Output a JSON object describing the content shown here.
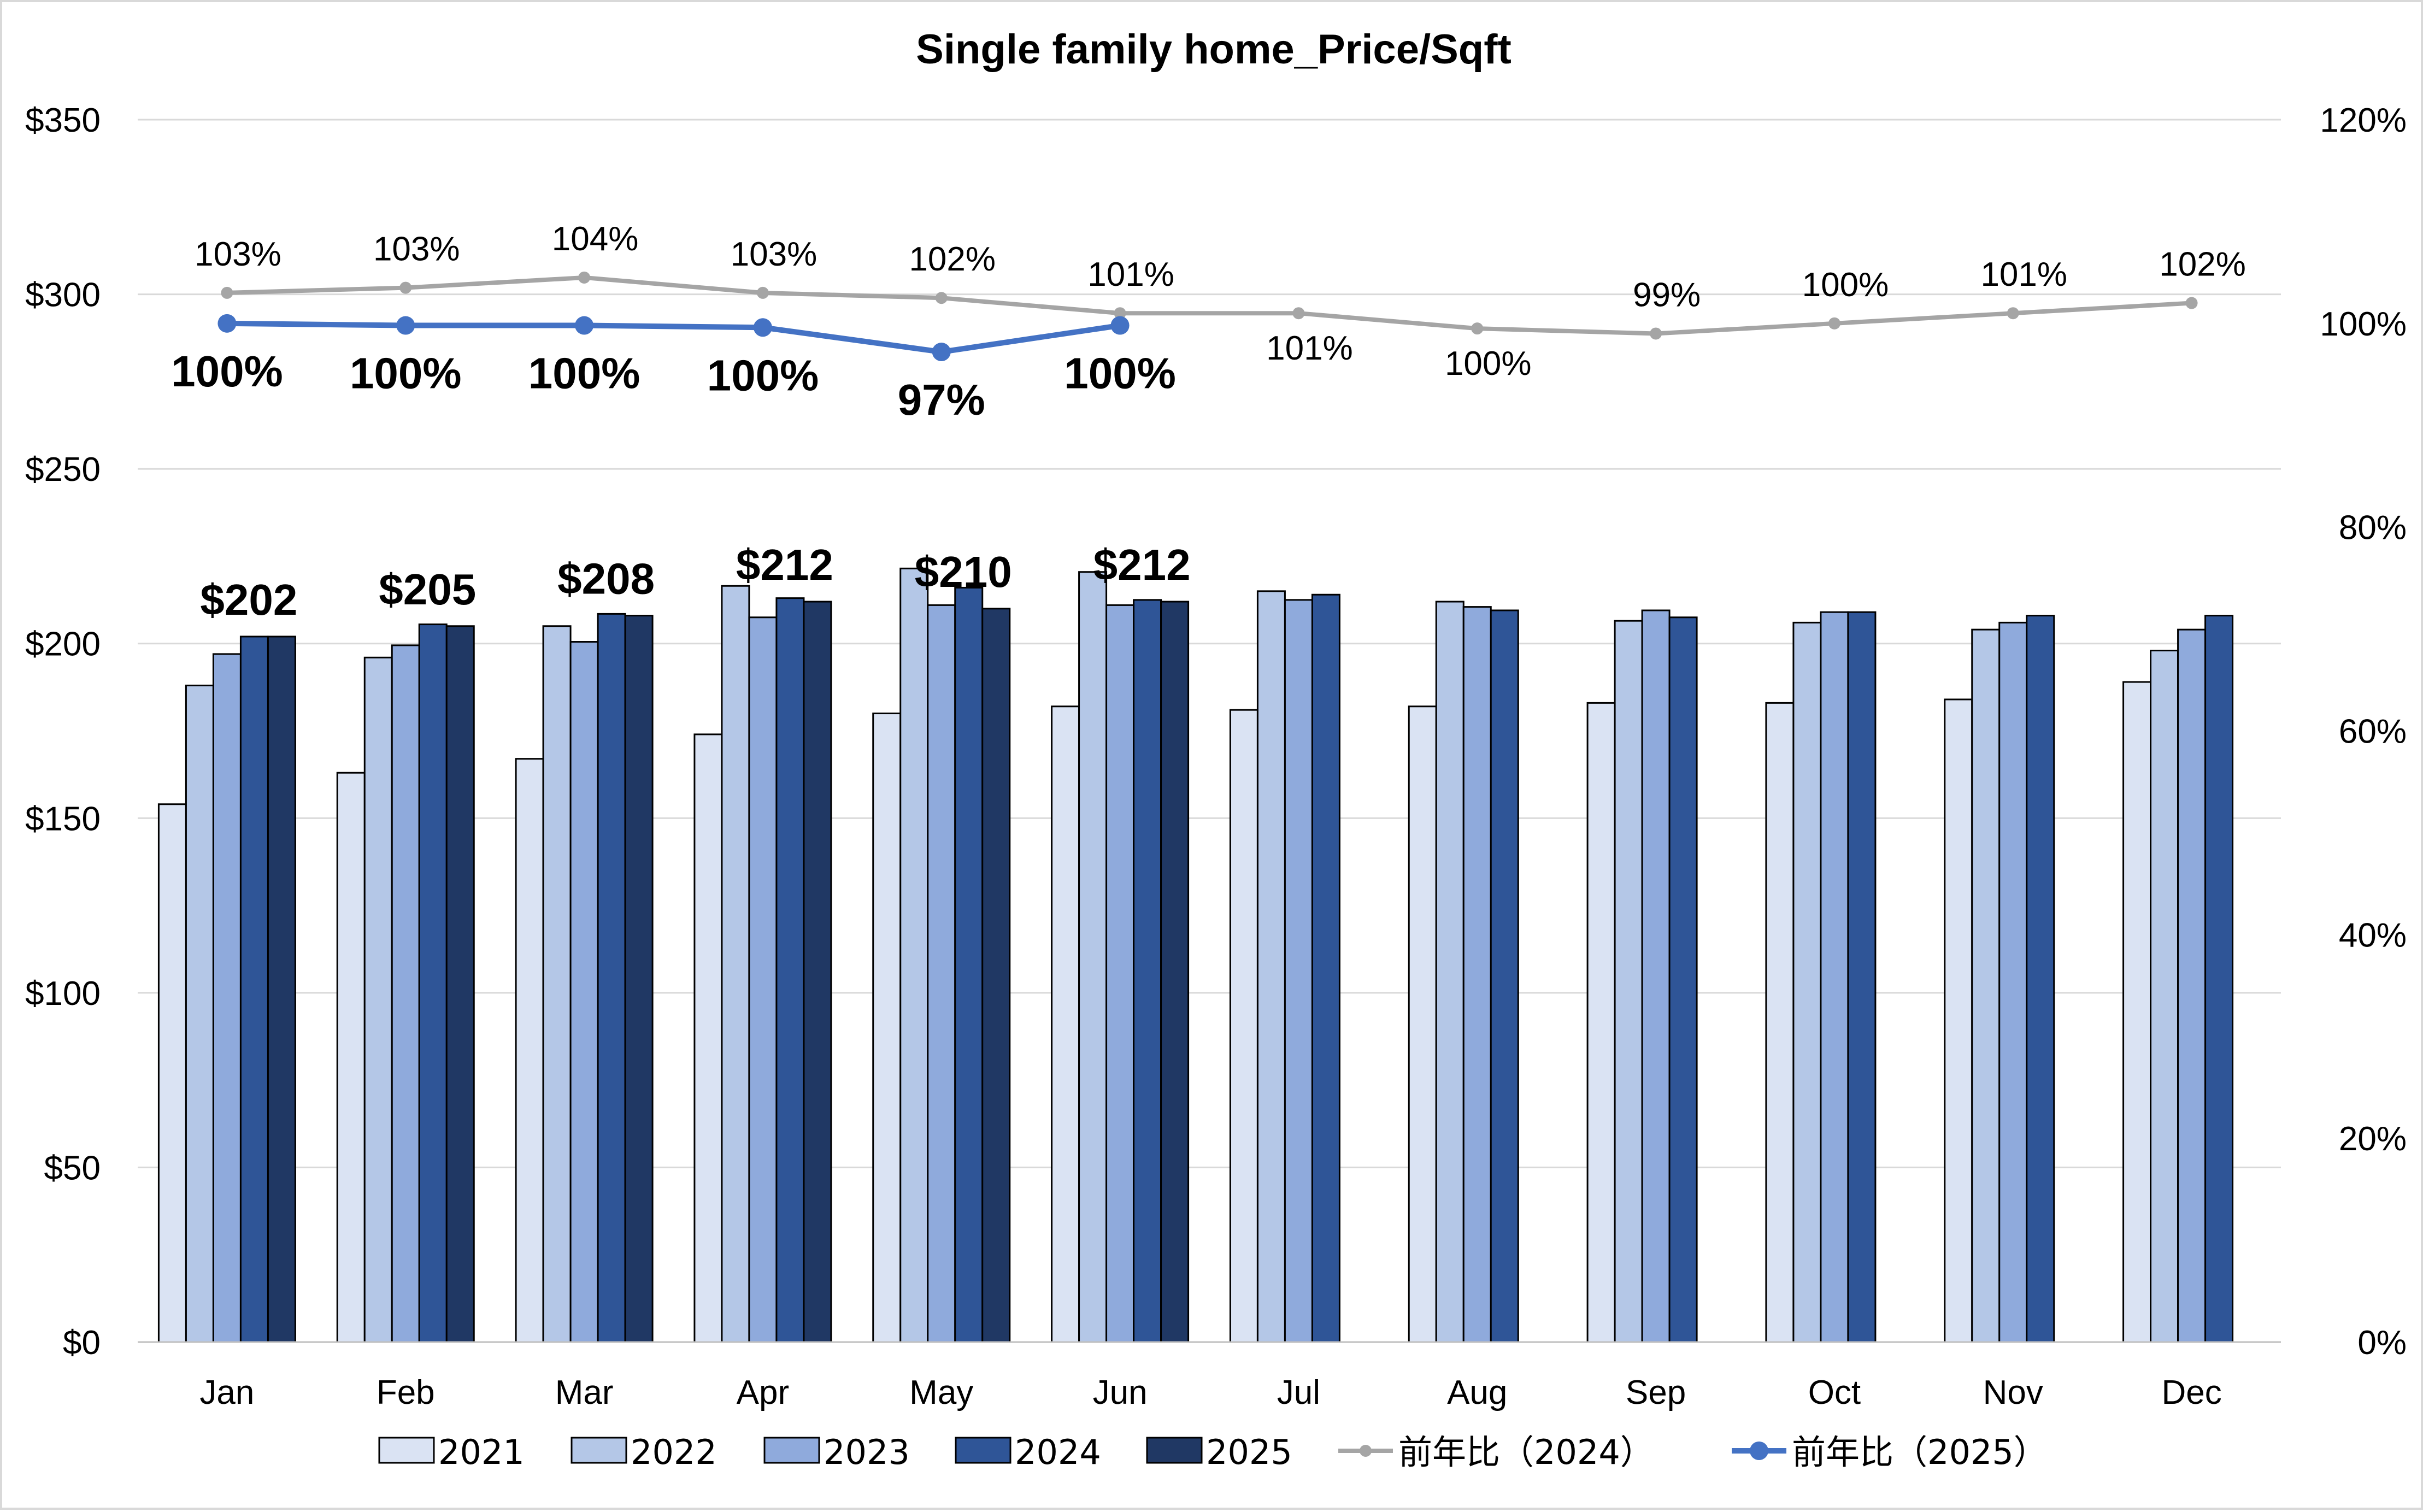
{
  "chart_data": {
    "type": "bar",
    "title": "Single family home_Price/Sqft",
    "categories": [
      "Jan",
      "Feb",
      "Mar",
      "Apr",
      "May",
      "Jun",
      "Jul",
      "Aug",
      "Sep",
      "Oct",
      "Nov",
      "Dec"
    ],
    "y_axis": {
      "range": [
        0,
        350
      ],
      "tick_values": [
        0,
        50,
        100,
        150,
        200,
        250,
        300,
        350
      ],
      "tick_labels": [
        "$0",
        "$50",
        "$100",
        "$150",
        "$200",
        "$250",
        "$300",
        "$350"
      ]
    },
    "y2_axis": {
      "range": [
        0,
        120
      ],
      "tick_values": [
        0,
        20,
        40,
        60,
        80,
        100,
        120
      ],
      "tick_labels": [
        "0%",
        "20%",
        "40%",
        "60%",
        "80%",
        "100%",
        "120%"
      ]
    },
    "grid": true,
    "legend_position": "bottom",
    "series": [
      {
        "name": "2021",
        "kind": "bar",
        "color": "#dae3f3",
        "values": [
          154,
          163,
          167,
          174,
          180,
          182,
          181,
          182,
          183,
          183,
          184,
          189
        ]
      },
      {
        "name": "2022",
        "kind": "bar",
        "color": "#b4c7e7",
        "values": [
          188,
          196,
          205,
          216.5,
          221.5,
          220.5,
          215,
          212,
          206.5,
          206,
          204,
          198
        ]
      },
      {
        "name": "2023",
        "kind": "bar",
        "color": "#8faadc",
        "values": [
          197,
          199.5,
          200.5,
          207.5,
          211,
          211,
          212.5,
          210.5,
          209.5,
          209,
          206,
          204
        ]
      },
      {
        "name": "2024",
        "kind": "bar",
        "color": "#2f5597",
        "values": [
          202,
          205.5,
          208.5,
          213,
          216,
          212.5,
          214,
          209.5,
          207.5,
          209,
          208,
          208
        ]
      },
      {
        "name": "2025",
        "kind": "bar",
        "color": "#203864",
        "values": [
          202,
          205,
          208,
          212,
          210,
          212,
          null,
          null,
          null,
          null,
          null,
          null
        ],
        "data_labels": [
          "$202",
          "$205",
          "$208",
          "$212",
          "$210",
          "$212",
          "",
          "",
          "",
          "",
          "",
          ""
        ]
      },
      {
        "name": "前年比（2024）",
        "kind": "line",
        "axis": "y2",
        "color": "#a5a5a5",
        "values": [
          103,
          103.5,
          104.5,
          103,
          102.5,
          101,
          101,
          99.5,
          99,
          100,
          101,
          102
        ],
        "data_labels": [
          "103%",
          "103%",
          "104%",
          "103%",
          "102%",
          "101%",
          "101%",
          "100%",
          "99%",
          "100%",
          "101%",
          "102%"
        ]
      },
      {
        "name": "前年比（2025）",
        "kind": "line",
        "axis": "y2",
        "color": "#4472c4",
        "values": [
          100,
          99.8,
          99.8,
          99.6,
          97.2,
          99.8,
          null,
          null,
          null,
          null,
          null,
          null
        ],
        "data_labels": [
          "100%",
          "100%",
          "100%",
          "100%",
          "97%",
          "100%",
          "",
          "",
          "",
          "",
          "",
          ""
        ]
      }
    ]
  }
}
